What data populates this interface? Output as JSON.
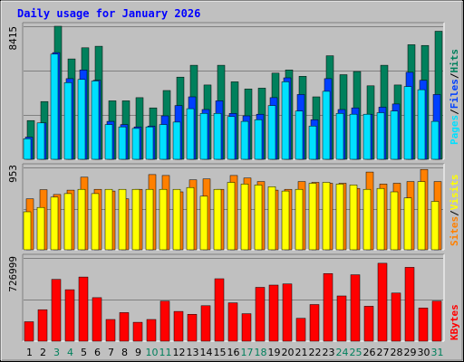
{
  "title": "Daily usage for January 2026",
  "colors": {
    "background": "#c0c0c0",
    "plot_bg": "#ffffff",
    "gridline": "#808080",
    "hits": "#00805c",
    "files": "#0040ff",
    "pages": "#00e0ff",
    "visits": "#ffff00",
    "sites": "#ff8000",
    "kbytes": "#ff0000",
    "title": "#0000ff",
    "weekend": "#00805c",
    "weekday": "#000000"
  },
  "chart_data": [
    {
      "type": "bar",
      "title": "Daily usage for January 2026",
      "categories": [
        "1",
        "2",
        "3",
        "4",
        "5",
        "6",
        "7",
        "8",
        "9",
        "10",
        "11",
        "12",
        "13",
        "14",
        "15",
        "16",
        "17",
        "18",
        "19",
        "20",
        "21",
        "22",
        "23",
        "24",
        "25",
        "26",
        "27",
        "28",
        "29",
        "30",
        "31"
      ],
      "weekend_days": [
        "3",
        "4",
        "10",
        "11",
        "17",
        "18",
        "24",
        "25",
        "31"
      ],
      "ymax_label": "8415",
      "ylim": [
        0,
        8415
      ],
      "legend": [
        {
          "label": "Pages",
          "color": "#00e0ff"
        },
        {
          "label": "/",
          "color": "#000000"
        },
        {
          "label": "Files",
          "color": "#0040ff"
        },
        {
          "label": "/",
          "color": "#000000"
        },
        {
          "label": "Hits",
          "color": "#00805c"
        }
      ],
      "series": [
        {
          "name": "Hits",
          "values": [
            2450,
            3650,
            8415,
            6350,
            7050,
            7150,
            3700,
            3700,
            3900,
            3250,
            4350,
            5200,
            5950,
            4700,
            5950,
            4900,
            4450,
            4500,
            5450,
            5650,
            5250,
            3950,
            6550,
            5350,
            5550,
            4650,
            5950,
            4700,
            7250,
            7200,
            8100
          ]
        },
        {
          "name": "Files",
          "values": [
            1400,
            2300,
            6750,
            5100,
            5650,
            5000,
            2400,
            2200,
            2050,
            2100,
            2750,
            3400,
            3950,
            3150,
            3700,
            2900,
            2750,
            2850,
            3900,
            5150,
            4100,
            2500,
            5100,
            3150,
            3250,
            2850,
            3300,
            3500,
            5500,
            5000,
            4100
          ]
        },
        {
          "name": "Pages",
          "values": [
            1300,
            2300,
            6650,
            4850,
            5050,
            4950,
            2200,
            2050,
            1950,
            2050,
            2200,
            2350,
            3200,
            2900,
            2900,
            2700,
            2400,
            2500,
            3400,
            4900,
            3050,
            2100,
            4300,
            2900,
            2850,
            2850,
            2950,
            3050,
            4600,
            4400,
            2400
          ]
        }
      ]
    },
    {
      "type": "bar",
      "categories": [
        "1",
        "2",
        "3",
        "4",
        "5",
        "6",
        "7",
        "8",
        "9",
        "10",
        "11",
        "12",
        "13",
        "14",
        "15",
        "16",
        "17",
        "18",
        "19",
        "20",
        "21",
        "22",
        "23",
        "24",
        "25",
        "26",
        "27",
        "28",
        "29",
        "30",
        "31"
      ],
      "ymax_label": "953",
      "ylim": [
        0,
        953
      ],
      "legend": [
        {
          "label": "Sites",
          "color": "#ff8000"
        },
        {
          "label": "/",
          "color": "#000000"
        },
        {
          "label": "Visits",
          "color": "#ffff00"
        }
      ],
      "series": [
        {
          "name": "Sites",
          "values": [
            590,
            695,
            640,
            690,
            840,
            700,
            680,
            590,
            700,
            870,
            860,
            670,
            810,
            820,
            700,
            860,
            830,
            790,
            690,
            700,
            790,
            780,
            770,
            770,
            710,
            900,
            760,
            770,
            790,
            930,
            790
          ]
        },
        {
          "name": "Visits",
          "values": [
            440,
            490,
            610,
            650,
            700,
            650,
            700,
            700,
            700,
            700,
            700,
            700,
            720,
            620,
            700,
            780,
            760,
            750,
            730,
            680,
            700,
            770,
            780,
            760,
            750,
            700,
            710,
            670,
            600,
            790,
            560
          ]
        }
      ]
    },
    {
      "type": "bar",
      "categories": [
        "1",
        "2",
        "3",
        "4",
        "5",
        "6",
        "7",
        "8",
        "9",
        "10",
        "11",
        "12",
        "13",
        "14",
        "15",
        "16",
        "17",
        "18",
        "19",
        "20",
        "21",
        "22",
        "23",
        "24",
        "25",
        "26",
        "27",
        "28",
        "29",
        "30",
        "31"
      ],
      "ymax_label": "726999",
      "ylim": [
        0,
        726999
      ],
      "legend": [
        {
          "label": "KBytes",
          "color": "#ff0000"
        }
      ],
      "series": [
        {
          "name": "KBytes",
          "values": [
            170000,
            275000,
            540000,
            450000,
            560000,
            380000,
            190000,
            250000,
            165000,
            190000,
            350000,
            260000,
            235000,
            310000,
            545000,
            335000,
            240000,
            470000,
            490000,
            500000,
            200000,
            320000,
            590000,
            395000,
            580000,
            305000,
            680000,
            420000,
            645000,
            290000,
            350000
          ]
        }
      ]
    }
  ]
}
